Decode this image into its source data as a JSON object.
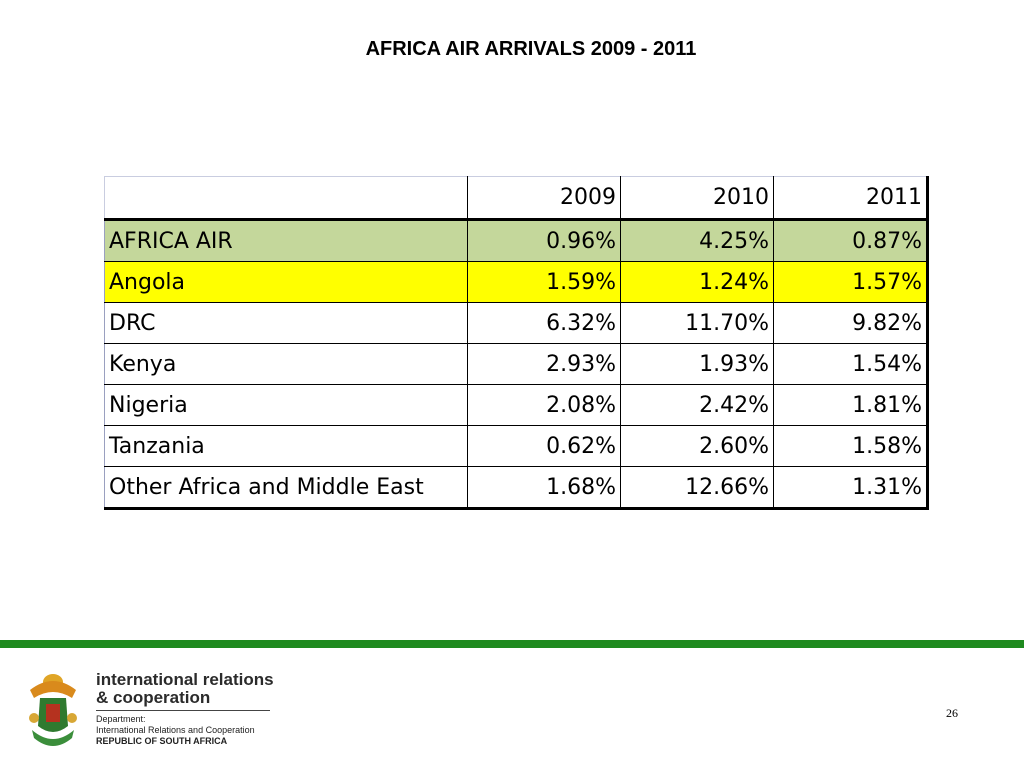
{
  "slide": {
    "title": "AFRICA AIR ARRIVALS 2009 - 2011",
    "page_number": "26"
  },
  "colors": {
    "total_row_bg": "#c4d79b",
    "highlight_row_bg": "#ffff00",
    "footer_bar": "#1f8a1f"
  },
  "chart_data": {
    "type": "table",
    "columns": [
      "",
      "2009",
      "2010",
      "2011"
    ],
    "rows": [
      {
        "label": "AFRICA AIR",
        "values": [
          "0.96%",
          "4.25%",
          "0.87%"
        ],
        "style": "total"
      },
      {
        "label": "Angola",
        "values": [
          "1.59%",
          "1.24%",
          "1.57%"
        ],
        "style": "highlight"
      },
      {
        "label": "DRC",
        "values": [
          "6.32%",
          "11.70%",
          "9.82%"
        ],
        "style": "normal"
      },
      {
        "label": "Kenya",
        "values": [
          "2.93%",
          "1.93%",
          "1.54%"
        ],
        "style": "normal"
      },
      {
        "label": "Nigeria",
        "values": [
          "2.08%",
          "2.42%",
          "1.81%"
        ],
        "style": "normal"
      },
      {
        "label": "Tanzania",
        "values": [
          "0.62%",
          "2.60%",
          "1.58%"
        ],
        "style": "normal"
      },
      {
        "label": "Other Africa and Middle East",
        "values": [
          "1.68%",
          "12.66%",
          "1.31%"
        ],
        "style": "normal"
      }
    ]
  },
  "footer": {
    "brand_line1": "international relations",
    "brand_line2": "& cooperation",
    "dept_line1": "Department:",
    "dept_line2": "International Relations and Cooperation",
    "dept_line3": "REPUBLIC OF SOUTH AFRICA",
    "logo_icon": "coat-of-arms-icon"
  }
}
